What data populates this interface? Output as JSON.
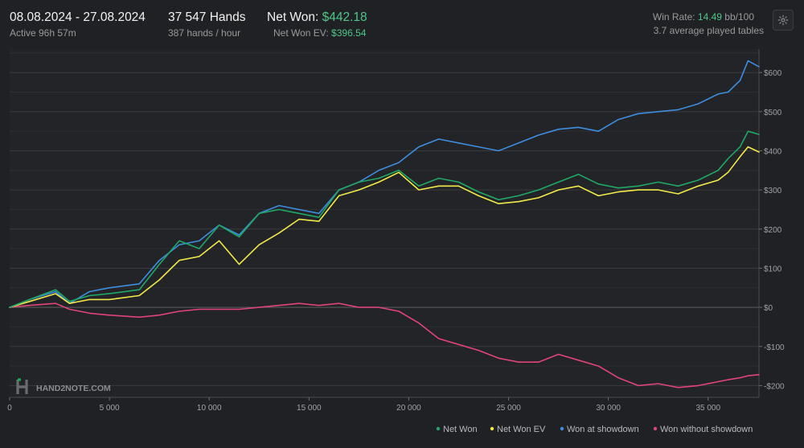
{
  "header": {
    "date_range": "08.08.2024 - 27.08.2024",
    "active_time": "Active 96h 57m",
    "hands_count": "37 547 Hands",
    "hands_rate": "387 hands / hour",
    "net_won_label": "Net Won:",
    "net_won_value": "$442.18",
    "net_won_ev_label": "Net Won  EV:",
    "net_won_ev_value": "$396.54",
    "win_rate_label": "Win Rate:",
    "win_rate_value": "14.49",
    "win_rate_unit": "bb/100",
    "tables_text": "3.7 average played tables"
  },
  "watermark": "HAND2NOTE.COM",
  "chart_data": {
    "type": "line",
    "xlim": [
      0,
      37547
    ],
    "ylim": [
      -230,
      660
    ],
    "x_ticks": [
      0,
      5000,
      10000,
      15000,
      20000,
      25000,
      30000,
      35000
    ],
    "x_tick_labels": [
      "0",
      "5 000",
      "10 000",
      "15 000",
      "20 000",
      "25 000",
      "30 000",
      "35 000"
    ],
    "y_ticks": [
      -200,
      -100,
      0,
      100,
      200,
      300,
      400,
      500,
      600
    ],
    "y_tick_labels": [
      "-$200",
      "-$100",
      "$0",
      "$100",
      "$200",
      "$300",
      "$400",
      "$500",
      "$600"
    ],
    "grid": true,
    "legend_position": "bottom-right",
    "x": [
      0,
      1000,
      2300,
      3000,
      4000,
      5000,
      6500,
      7500,
      8500,
      9500,
      10500,
      11500,
      12500,
      13500,
      14500,
      15500,
      16500,
      17500,
      18500,
      19500,
      20500,
      21500,
      22500,
      23500,
      24500,
      25500,
      26500,
      27500,
      28500,
      29500,
      30500,
      31500,
      32500,
      33500,
      34500,
      35500,
      36000,
      36600,
      37000,
      37547
    ],
    "series": [
      {
        "name": "Net Won",
        "color": "#1fa866",
        "values": [
          0,
          20,
          45,
          15,
          30,
          35,
          45,
          110,
          170,
          150,
          210,
          180,
          240,
          250,
          240,
          230,
          300,
          320,
          330,
          350,
          310,
          330,
          320,
          295,
          275,
          285,
          300,
          320,
          340,
          315,
          305,
          310,
          320,
          310,
          325,
          350,
          380,
          410,
          450,
          442
        ]
      },
      {
        "name": "Net Won  EV",
        "color": "#f1ea4a",
        "values": [
          0,
          15,
          35,
          10,
          20,
          20,
          30,
          70,
          120,
          130,
          170,
          110,
          160,
          190,
          225,
          220,
          285,
          300,
          320,
          345,
          300,
          310,
          310,
          285,
          265,
          270,
          280,
          300,
          310,
          285,
          295,
          300,
          300,
          290,
          310,
          325,
          345,
          385,
          410,
          397
        ]
      },
      {
        "name": "Won at showdown",
        "color": "#3d8de0",
        "values": [
          0,
          20,
          40,
          10,
          40,
          50,
          60,
          120,
          160,
          170,
          210,
          185,
          240,
          260,
          250,
          240,
          300,
          320,
          350,
          370,
          410,
          430,
          420,
          410,
          400,
          420,
          440,
          455,
          460,
          450,
          480,
          495,
          500,
          505,
          520,
          545,
          550,
          580,
          630,
          615
        ]
      },
      {
        "name": "Won without showdown",
        "color": "#e0447a",
        "values": [
          0,
          5,
          10,
          -5,
          -15,
          -20,
          -25,
          -20,
          -10,
          -5,
          -5,
          -5,
          0,
          5,
          10,
          5,
          10,
          0,
          0,
          -10,
          -40,
          -80,
          -95,
          -110,
          -130,
          -140,
          -140,
          -120,
          -135,
          -150,
          -180,
          -200,
          -195,
          -205,
          -200,
          -190,
          -185,
          -180,
          -175,
          -172
        ]
      }
    ]
  }
}
